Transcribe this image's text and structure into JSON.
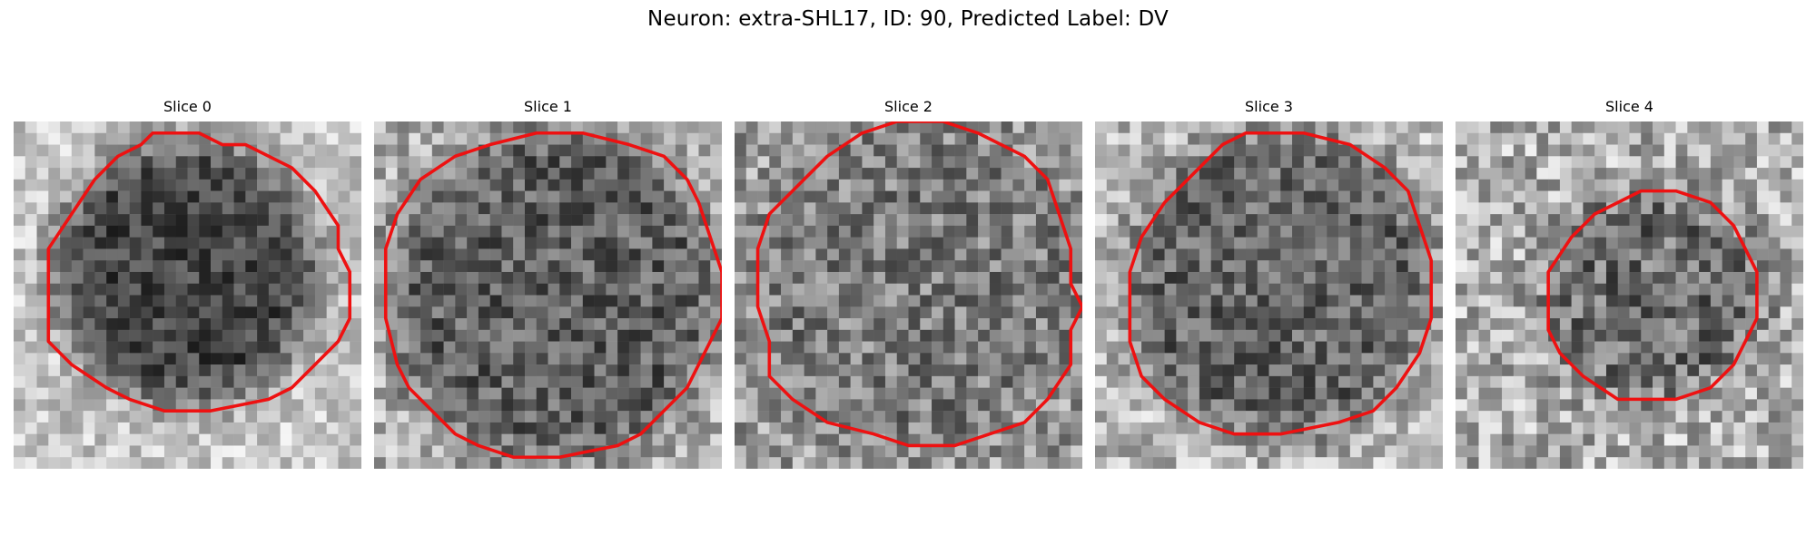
{
  "figure": {
    "title": "Neuron: extra-SHL17, ID: 90, Predicted Label: DV"
  },
  "style": {
    "contour_color": "#ee1111",
    "colormap": "gray"
  },
  "panels": [
    {
      "title": "Slice 0",
      "contour": [
        [
          12,
          1
        ],
        [
          16,
          1
        ],
        [
          18,
          2
        ],
        [
          20,
          2
        ],
        [
          24,
          4
        ],
        [
          26,
          6
        ],
        [
          28,
          9
        ],
        [
          28,
          11
        ],
        [
          29,
          13
        ],
        [
          29,
          17
        ],
        [
          28,
          19
        ],
        [
          26,
          21
        ],
        [
          24,
          23
        ],
        [
          22,
          24
        ],
        [
          17,
          25
        ],
        [
          13,
          25
        ],
        [
          10,
          24
        ],
        [
          8,
          23
        ],
        [
          5,
          21
        ],
        [
          3,
          19
        ],
        [
          3,
          11
        ],
        [
          5,
          8
        ],
        [
          7,
          5
        ],
        [
          9,
          3
        ],
        [
          11,
          2
        ]
      ]
    },
    {
      "title": "Slice 1",
      "contour": [
        [
          10,
          2
        ],
        [
          14,
          1
        ],
        [
          18,
          1
        ],
        [
          22,
          2
        ],
        [
          25,
          3
        ],
        [
          27,
          5
        ],
        [
          28,
          7
        ],
        [
          29,
          10
        ],
        [
          30,
          13
        ],
        [
          30,
          17
        ],
        [
          28,
          21
        ],
        [
          27,
          23
        ],
        [
          25,
          25
        ],
        [
          23,
          27
        ],
        [
          21,
          28
        ],
        [
          16,
          29
        ],
        [
          12,
          29
        ],
        [
          9,
          28
        ],
        [
          7,
          27
        ],
        [
          5,
          25
        ],
        [
          3,
          23
        ],
        [
          2,
          21
        ],
        [
          1,
          17
        ],
        [
          1,
          11
        ],
        [
          2,
          8
        ],
        [
          4,
          5
        ],
        [
          7,
          3
        ]
      ]
    },
    {
      "title": "Slice 2",
      "contour": [
        [
          14,
          0
        ],
        [
          18,
          0
        ],
        [
          21,
          1
        ],
        [
          25,
          3
        ],
        [
          27,
          5
        ],
        [
          28,
          8
        ],
        [
          29,
          11
        ],
        [
          29,
          14
        ],
        [
          30,
          16
        ],
        [
          29,
          18
        ],
        [
          29,
          21
        ],
        [
          27,
          24
        ],
        [
          25,
          26
        ],
        [
          22,
          27
        ],
        [
          19,
          28
        ],
        [
          15,
          28
        ],
        [
          12,
          27
        ],
        [
          8,
          26
        ],
        [
          5,
          24
        ],
        [
          3,
          22
        ],
        [
          3,
          19
        ],
        [
          2,
          16
        ],
        [
          2,
          11
        ],
        [
          3,
          8
        ],
        [
          5,
          6
        ],
        [
          8,
          3
        ],
        [
          11,
          1
        ]
      ]
    },
    {
      "title": "Slice 3",
      "contour": [
        [
          13,
          1
        ],
        [
          18,
          1
        ],
        [
          22,
          2
        ],
        [
          25,
          4
        ],
        [
          27,
          6
        ],
        [
          28,
          9
        ],
        [
          29,
          12
        ],
        [
          29,
          17
        ],
        [
          28,
          20
        ],
        [
          26,
          23
        ],
        [
          24,
          25
        ],
        [
          21,
          26
        ],
        [
          16,
          27
        ],
        [
          12,
          27
        ],
        [
          9,
          26
        ],
        [
          6,
          24
        ],
        [
          4,
          22
        ],
        [
          3,
          19
        ],
        [
          3,
          13
        ],
        [
          4,
          10
        ],
        [
          6,
          7
        ],
        [
          9,
          4
        ],
        [
          11,
          2
        ]
      ]
    },
    {
      "title": "Slice 4",
      "contour": [
        [
          16,
          6
        ],
        [
          19,
          6
        ],
        [
          22,
          7
        ],
        [
          24,
          9
        ],
        [
          25,
          11
        ],
        [
          26,
          13
        ],
        [
          26,
          17
        ],
        [
          25,
          19
        ],
        [
          24,
          21
        ],
        [
          22,
          23
        ],
        [
          19,
          24
        ],
        [
          14,
          24
        ],
        [
          11,
          22
        ],
        [
          9,
          20
        ],
        [
          8,
          18
        ],
        [
          8,
          13
        ],
        [
          10,
          10
        ],
        [
          12,
          8
        ],
        [
          14,
          7
        ]
      ]
    }
  ]
}
